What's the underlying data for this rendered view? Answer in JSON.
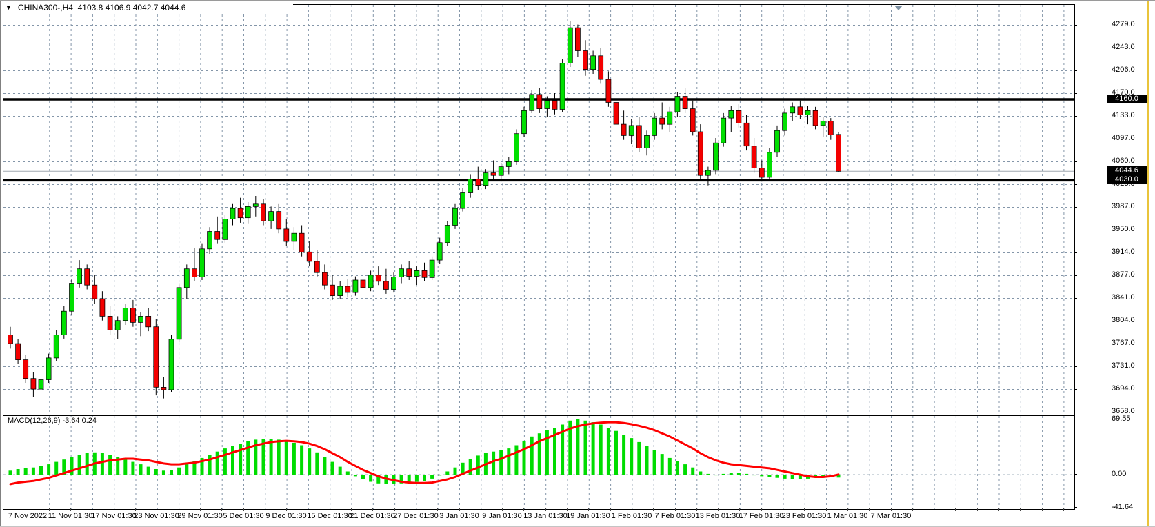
{
  "header": {
    "dropdown_icon": "▼",
    "title_text": "CHINA300-,H4  4103.8 4106.9 4042.7 4044.6",
    "symbol": "CHINA300-",
    "timeframe": "H4",
    "open": "4103.8",
    "high": "4106.9",
    "low": "4042.7",
    "close": "4044.6"
  },
  "chart_data": {
    "type": "candlestick",
    "title": "CHINA300-,H4",
    "price_axis": {
      "labels": [
        "4279.0",
        "4243.0",
        "4206.0",
        "4170.0",
        "4133.0",
        "4097.0",
        "4060.0",
        "4023.0",
        "3987.0",
        "3950.0",
        "3914.0",
        "3877.0",
        "3841.0",
        "3804.0",
        "3767.0",
        "3731.0",
        "3694.0",
        "3658.0"
      ]
    },
    "x_axis": {
      "labels": [
        "7 Nov 2022",
        "11 Nov 01:30",
        "17 Nov 01:30",
        "23 Nov 01:30",
        "29 Nov 01:30",
        "5 Dec 01:30",
        "9 Dec 01:30",
        "15 Dec 01:30",
        "21 Dec 01:30",
        "27 Dec 01:30",
        "3 Jan 01:30",
        "9 Jan 01:30",
        "13 Jan 01:30",
        "19 Jan 01:30",
        "1 Feb 01:30",
        "7 Feb 01:30",
        "13 Feb 01:30",
        "17 Feb 01:30",
        "23 Feb 01:30",
        "1 Mar 01:30",
        "7 Mar 01:30"
      ]
    },
    "candles": [
      [
        3782,
        3795,
        3760,
        3768
      ],
      [
        3768,
        3775,
        3735,
        3742
      ],
      [
        3742,
        3750,
        3705,
        3712
      ],
      [
        3712,
        3722,
        3682,
        3695
      ],
      [
        3695,
        3718,
        3685,
        3710
      ],
      [
        3710,
        3752,
        3705,
        3745
      ],
      [
        3745,
        3790,
        3740,
        3782
      ],
      [
        3782,
        3828,
        3776,
        3820
      ],
      [
        3820,
        3872,
        3815,
        3865
      ],
      [
        3865,
        3902,
        3858,
        3888
      ],
      [
        3888,
        3895,
        3855,
        3862
      ],
      [
        3862,
        3878,
        3832,
        3840
      ],
      [
        3840,
        3852,
        3805,
        3812
      ],
      [
        3812,
        3828,
        3782,
        3790
      ],
      [
        3790,
        3812,
        3775,
        3805
      ],
      [
        3805,
        3832,
        3798,
        3825
      ],
      [
        3825,
        3838,
        3795,
        3802
      ],
      [
        3802,
        3818,
        3780,
        3812
      ],
      [
        3812,
        3825,
        3788,
        3795
      ],
      [
        3795,
        3808,
        3685,
        3698
      ],
      [
        3698,
        3715,
        3680,
        3694
      ],
      [
        3694,
        3782,
        3690,
        3775
      ],
      [
        3775,
        3865,
        3770,
        3858
      ],
      [
        3858,
        3895,
        3840,
        3888
      ],
      [
        3888,
        3922,
        3868,
        3875
      ],
      [
        3875,
        3928,
        3870,
        3920
      ],
      [
        3920,
        3955,
        3912,
        3948
      ],
      [
        3948,
        3972,
        3928,
        3935
      ],
      [
        3935,
        3975,
        3930,
        3968
      ],
      [
        3968,
        3992,
        3958,
        3985
      ],
      [
        3985,
        4002,
        3962,
        3970
      ],
      [
        3970,
        3995,
        3960,
        3988
      ],
      [
        3988,
        4005,
        3972,
        3992
      ],
      [
        3992,
        4000,
        3958,
        3965
      ],
      [
        3965,
        3988,
        3952,
        3980
      ],
      [
        3980,
        3992,
        3945,
        3952
      ],
      [
        3952,
        3968,
        3925,
        3932
      ],
      [
        3932,
        3955,
        3918,
        3945
      ],
      [
        3945,
        3958,
        3908,
        3915
      ],
      [
        3915,
        3932,
        3892,
        3900
      ],
      [
        3900,
        3918,
        3875,
        3882
      ],
      [
        3882,
        3895,
        3855,
        3862
      ],
      [
        3862,
        3878,
        3838,
        3845
      ],
      [
        3845,
        3868,
        3840,
        3860
      ],
      [
        3860,
        3872,
        3842,
        3850
      ],
      [
        3850,
        3876,
        3845,
        3870
      ],
      [
        3870,
        3882,
        3852,
        3858
      ],
      [
        3858,
        3885,
        3852,
        3878
      ],
      [
        3878,
        3892,
        3862,
        3868
      ],
      [
        3868,
        3888,
        3848,
        3855
      ],
      [
        3855,
        3882,
        3850,
        3875
      ],
      [
        3875,
        3895,
        3865,
        3888
      ],
      [
        3888,
        3900,
        3870,
        3876
      ],
      [
        3876,
        3892,
        3862,
        3885
      ],
      [
        3885,
        3898,
        3868,
        3874
      ],
      [
        3874,
        3908,
        3870,
        3902
      ],
      [
        3902,
        3938,
        3896,
        3930
      ],
      [
        3930,
        3965,
        3925,
        3958
      ],
      [
        3958,
        3992,
        3952,
        3985
      ],
      [
        3985,
        4018,
        3980,
        4010
      ],
      [
        4010,
        4040,
        4002,
        4032
      ],
      [
        4032,
        4052,
        4015,
        4022
      ],
      [
        4022,
        4048,
        4016,
        4042
      ],
      [
        4042,
        4062,
        4030,
        4038
      ],
      [
        4038,
        4058,
        4028,
        4052
      ],
      [
        4052,
        4068,
        4040,
        4060
      ],
      [
        4060,
        4112,
        4055,
        4105
      ],
      [
        4105,
        4148,
        4100,
        4142
      ],
      [
        4142,
        4175,
        4138,
        4168
      ],
      [
        4168,
        4178,
        4138,
        4145
      ],
      [
        4145,
        4165,
        4132,
        4158
      ],
      [
        4158,
        4170,
        4136,
        4144
      ],
      [
        4144,
        4225,
        4140,
        4218
      ],
      [
        4218,
        4286,
        4212,
        4275
      ],
      [
        4275,
        4280,
        4228,
        4238
      ],
      [
        4238,
        4255,
        4198,
        4208
      ],
      [
        4208,
        4238,
        4200,
        4230
      ],
      [
        4230,
        4242,
        4185,
        4192
      ],
      [
        4192,
        4205,
        4148,
        4155
      ],
      [
        4155,
        4172,
        4112,
        4120
      ],
      [
        4120,
        4142,
        4095,
        4102
      ],
      [
        4102,
        4128,
        4088,
        4118
      ],
      [
        4118,
        4132,
        4075,
        4082
      ],
      [
        4082,
        4110,
        4070,
        4102
      ],
      [
        4102,
        4138,
        4095,
        4130
      ],
      [
        4130,
        4155,
        4112,
        4120
      ],
      [
        4120,
        4148,
        4108,
        4140
      ],
      [
        4140,
        4172,
        4132,
        4165
      ],
      [
        4165,
        4178,
        4138,
        4145
      ],
      [
        4145,
        4158,
        4102,
        4108
      ],
      [
        4108,
        4120,
        4030,
        4038
      ],
      [
        4038,
        4052,
        4022,
        4046
      ],
      [
        4046,
        4098,
        4040,
        4090
      ],
      [
        4090,
        4138,
        4084,
        4130
      ],
      [
        4130,
        4150,
        4108,
        4142
      ],
      [
        4142,
        4152,
        4115,
        4122
      ],
      [
        4122,
        4135,
        4078,
        4085
      ],
      [
        4085,
        4098,
        4042,
        4050
      ],
      [
        4050,
        4062,
        4028,
        4035
      ],
      [
        4035,
        4082,
        4030,
        4075
      ],
      [
        4075,
        4118,
        4068,
        4110
      ],
      [
        4110,
        4145,
        4102,
        4138
      ],
      [
        4138,
        4155,
        4125,
        4148
      ],
      [
        4148,
        4158,
        4128,
        4135
      ],
      [
        4135,
        4150,
        4120,
        4142
      ],
      [
        4142,
        4148,
        4112,
        4118
      ],
      [
        4118,
        4132,
        4100,
        4125
      ],
      [
        4125,
        4130,
        4095,
        4103
      ],
      [
        4103.8,
        4106.9,
        4042.7,
        4044.6
      ]
    ],
    "overlays": {
      "hlines": [
        {
          "price": 4160.0,
          "label": "4160.0"
        },
        {
          "price": 4030.0,
          "label": "4030.0"
        }
      ],
      "current": {
        "price": 4044.6,
        "label": "4044.6"
      }
    },
    "indicator": {
      "name": "MACD(12,26,9)",
      "display": "MACD(12,26,9) -3.64 0.24",
      "macd_value": -3.64,
      "signal_value": 0.24,
      "scale_labels": [
        "69.55",
        "0.00",
        "-41.64"
      ],
      "scale": [
        69.55,
        0.0,
        -41.64
      ],
      "histogram": [
        5,
        7,
        8,
        9,
        11,
        13,
        16,
        19,
        22,
        25,
        27,
        28,
        27,
        25,
        22,
        19,
        16,
        13,
        10,
        7,
        5,
        6,
        9,
        13,
        17,
        21,
        25,
        29,
        33,
        36,
        39,
        42,
        44,
        45,
        45,
        44,
        42,
        40,
        37,
        33,
        28,
        22,
        16,
        10,
        4,
        -2,
        -6,
        -9,
        -11,
        -12,
        -12,
        -11,
        -10,
        -9,
        -8,
        -5,
        -1,
        4,
        9,
        15,
        20,
        24,
        27,
        29,
        31,
        33,
        37,
        42,
        48,
        52,
        56,
        59,
        63,
        68,
        69.55,
        68,
        66,
        63,
        59,
        55,
        50,
        46,
        41,
        36,
        31,
        26,
        21,
        17,
        13,
        9,
        4,
        1,
        0,
        1,
        2,
        2,
        1,
        0,
        -2,
        -3,
        -4,
        -5,
        -6,
        -6,
        -5,
        -4,
        -3,
        -2,
        -3.64
      ],
      "signal": [
        -12,
        -10,
        -9,
        -8,
        -6,
        -4,
        -1,
        2,
        5,
        8,
        11,
        14,
        16,
        18,
        19,
        20,
        20,
        19,
        18,
        16,
        14,
        13,
        13,
        14,
        15,
        17,
        19,
        22,
        25,
        28,
        31,
        34,
        37,
        39,
        41,
        42,
        42.5,
        42,
        41,
        39,
        36,
        32,
        27,
        22,
        16,
        11,
        6,
        2,
        -2,
        -5,
        -7,
        -9,
        -10,
        -10.5,
        -10.5,
        -10,
        -8,
        -6,
        -3,
        1,
        5,
        9,
        13,
        17,
        20,
        24,
        28,
        32,
        37,
        42,
        46,
        50,
        54,
        58,
        61,
        63,
        64.5,
        65.5,
        66,
        66,
        65,
        63.5,
        61.5,
        59,
        56,
        52,
        48,
        43,
        38,
        33,
        27,
        22,
        18,
        15,
        13,
        12,
        11,
        10,
        9,
        8,
        6,
        4,
        2,
        0,
        -2,
        -3,
        -3,
        -2,
        0.24
      ]
    },
    "colors": {
      "bull": "#00e000",
      "bear": "#f40000",
      "candle_outline": "#000000",
      "wick": "#000000",
      "grid": "#8496a9",
      "hline": "#000000",
      "current_price_line": "#a0a8b0",
      "badge_bg": "#000000",
      "badge_text": "#ffffff",
      "histogram": "#00dc00",
      "signal": "#ff0000",
      "splitter_yellow": "#e9c43b",
      "shift_marker": "#7e92a4"
    }
  }
}
